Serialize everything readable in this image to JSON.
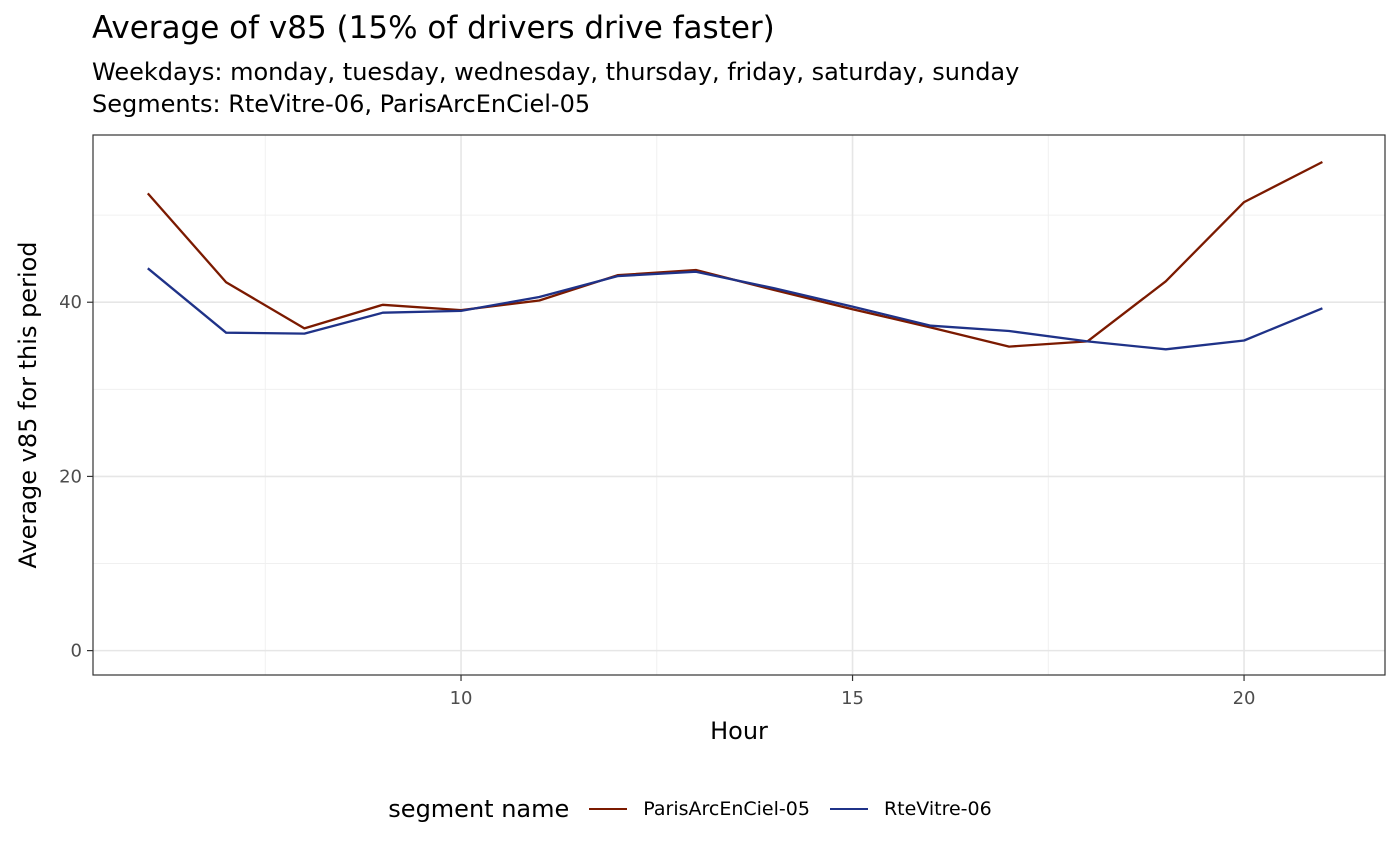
{
  "chart_data": {
    "type": "line",
    "title": "Average of v85 (15% of drivers drive faster)",
    "subtitle_lines": [
      "Weekdays: monday, tuesday, wednesday, thursday, friday, saturday, sunday",
      "Segments: RteVitre-06, ParisArcEnCiel-05"
    ],
    "xlabel": "Hour",
    "ylabel": "Average v85 for this period",
    "xlim": [
      5.3,
      21.8
    ],
    "ylim": [
      -2.8,
      59.2
    ],
    "x_ticks": [
      10,
      15,
      20
    ],
    "y_ticks": [
      0,
      20,
      40
    ],
    "x_minor": [
      7.5,
      12.5,
      17.5
    ],
    "y_minor": [
      10,
      30,
      50
    ],
    "grid": true,
    "legend_position": "bottom",
    "legend_title": "segment name",
    "series": [
      {
        "name": "ParisArcEnCiel-05",
        "color": "#7B1A00",
        "x": [
          6,
          7,
          8,
          9,
          10,
          11,
          12,
          13,
          14,
          15,
          16,
          17,
          18,
          19,
          20,
          21
        ],
        "y": [
          52.5,
          42.3,
          37.0,
          39.7,
          39.1,
          40.2,
          43.1,
          43.7,
          41.4,
          39.2,
          37.1,
          34.9,
          35.5,
          42.4,
          51.5,
          56.1
        ]
      },
      {
        "name": "RteVitre-06",
        "color": "#1F3288",
        "x": [
          6,
          7,
          8,
          9,
          10,
          11,
          12,
          13,
          14,
          15,
          16,
          17,
          18,
          19,
          20,
          21
        ],
        "y": [
          43.9,
          36.5,
          36.4,
          38.8,
          39.0,
          40.6,
          43.0,
          43.5,
          41.6,
          39.5,
          37.3,
          36.7,
          35.5,
          34.6,
          35.6,
          39.3
        ]
      }
    ]
  }
}
